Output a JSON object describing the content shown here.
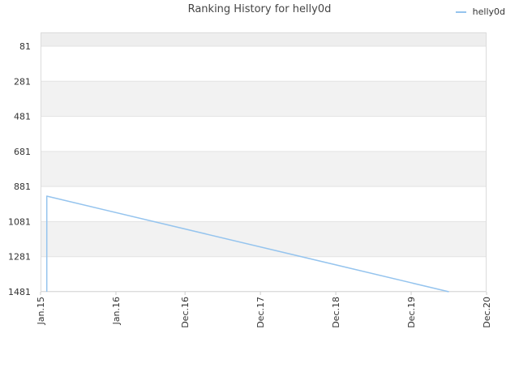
{
  "chart_data": {
    "type": "line",
    "title": "Ranking History for helly0d",
    "xlabel": "",
    "ylabel": "",
    "y_inverted": true,
    "ylim": [
      1481,
      81
    ],
    "y_ticks": [
      81,
      281,
      481,
      681,
      881,
      1081,
      1281,
      1481
    ],
    "x_tick_labels": [
      "Jan.15",
      "Jan.16",
      "Dec.16",
      "Dec.17",
      "Dec.18",
      "Dec.19",
      "Dec.20"
    ],
    "grid": true,
    "legend_position": "top-right",
    "series": [
      {
        "name": "helly0d",
        "color": "#95c4ee",
        "points": [
          {
            "x": "Feb.15",
            "y": 1481
          },
          {
            "x": "Feb.15",
            "y": 936
          },
          {
            "x": "Jun.20",
            "y": 1481
          }
        ]
      }
    ]
  }
}
